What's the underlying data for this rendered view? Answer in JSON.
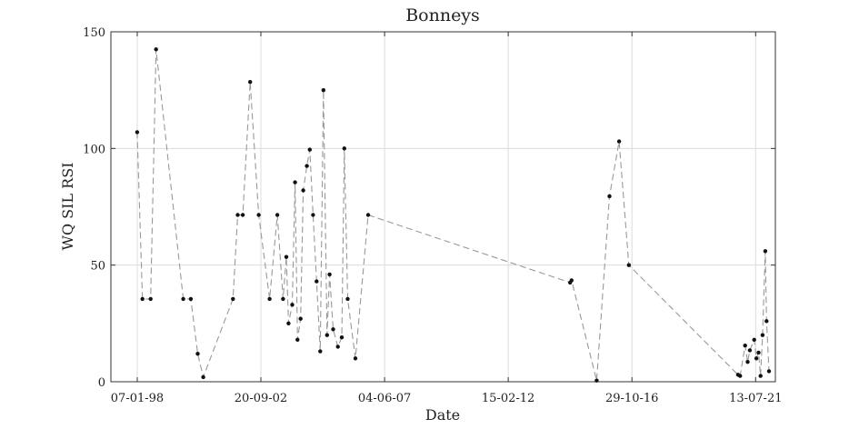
{
  "chart_data": {
    "type": "line",
    "title": "Bonneys",
    "xlabel": "Date",
    "ylabel": "WQ SIL RSI",
    "ylim": [
      0,
      150
    ],
    "xlim": [
      "1997-01-06",
      "2022-04-13"
    ],
    "yticks": [
      0,
      50,
      100,
      150
    ],
    "xtick_labels": [
      "07-01-98",
      "20-09-02",
      "04-06-07",
      "15-02-12",
      "29-10-16",
      "13-07-21"
    ],
    "xtick_dates": [
      "1998-01-07",
      "2002-09-20",
      "2007-06-04",
      "2012-02-15",
      "2016-10-29",
      "2021-07-13"
    ],
    "grid": true,
    "line_style": "dashed",
    "colors": {
      "line": "#999999",
      "marker": "#111111",
      "grid": "#dcdcdc"
    },
    "series": [
      {
        "points": [
          [
            "1998-01-06",
            107
          ],
          [
            "1998-03-20",
            35.5
          ],
          [
            "1998-07-12",
            35.5
          ],
          [
            "1998-09-25",
            142.5
          ],
          [
            "1999-10-08",
            35.5
          ],
          [
            "2000-01-21",
            35.5
          ],
          [
            "2000-04-25",
            12
          ],
          [
            "2000-07-12",
            2
          ],
          [
            "2001-08-28",
            35.5
          ],
          [
            "2001-11-02",
            71.5
          ],
          [
            "2002-01-12",
            71.5
          ],
          [
            "2002-04-24",
            128.5
          ],
          [
            "2002-08-20",
            71.5
          ],
          [
            "2003-01-19",
            35.5
          ],
          [
            "2003-05-07",
            71.5
          ],
          [
            "2003-07-25",
            35.5
          ],
          [
            "2003-09-09",
            53.5
          ],
          [
            "2003-10-09",
            25
          ],
          [
            "2003-11-29",
            33
          ],
          [
            "2004-01-07",
            85.5
          ],
          [
            "2004-02-11",
            18
          ],
          [
            "2004-03-25",
            27
          ],
          [
            "2004-04-30",
            82
          ],
          [
            "2004-06-20",
            92.5
          ],
          [
            "2004-07-30",
            99.5
          ],
          [
            "2004-09-13",
            71.5
          ],
          [
            "2004-11-02",
            43
          ],
          [
            "2004-12-22",
            13
          ],
          [
            "2005-02-05",
            125
          ],
          [
            "2005-03-27",
            20
          ],
          [
            "2005-05-01",
            46
          ],
          [
            "2005-06-20",
            22.5
          ],
          [
            "2005-08-24",
            15
          ],
          [
            "2005-10-18",
            19
          ],
          [
            "2005-11-22",
            100
          ],
          [
            "2006-01-07",
            35.5
          ],
          [
            "2006-04-25",
            10
          ],
          [
            "2006-10-18",
            71.5
          ],
          [
            "2014-06-24",
            42.5
          ],
          [
            "2014-07-14",
            43.5
          ],
          [
            "2015-06-27",
            0.5
          ],
          [
            "2015-12-22",
            79.5
          ],
          [
            "2016-05-04",
            103
          ],
          [
            "2016-09-16",
            50
          ],
          [
            "2020-11-10",
            3
          ],
          [
            "2020-12-09",
            2.5
          ],
          [
            "2021-02-17",
            15.5
          ],
          [
            "2021-03-24",
            8.5
          ],
          [
            "2021-04-23",
            13.5
          ],
          [
            "2021-06-23",
            18
          ],
          [
            "2021-07-23",
            10
          ],
          [
            "2021-08-22",
            12.5
          ],
          [
            "2021-09-19",
            2.5
          ],
          [
            "2021-10-17",
            20
          ],
          [
            "2021-11-24",
            56
          ],
          [
            "2021-12-11",
            26
          ],
          [
            "2022-01-15",
            4.5
          ]
        ]
      }
    ]
  }
}
